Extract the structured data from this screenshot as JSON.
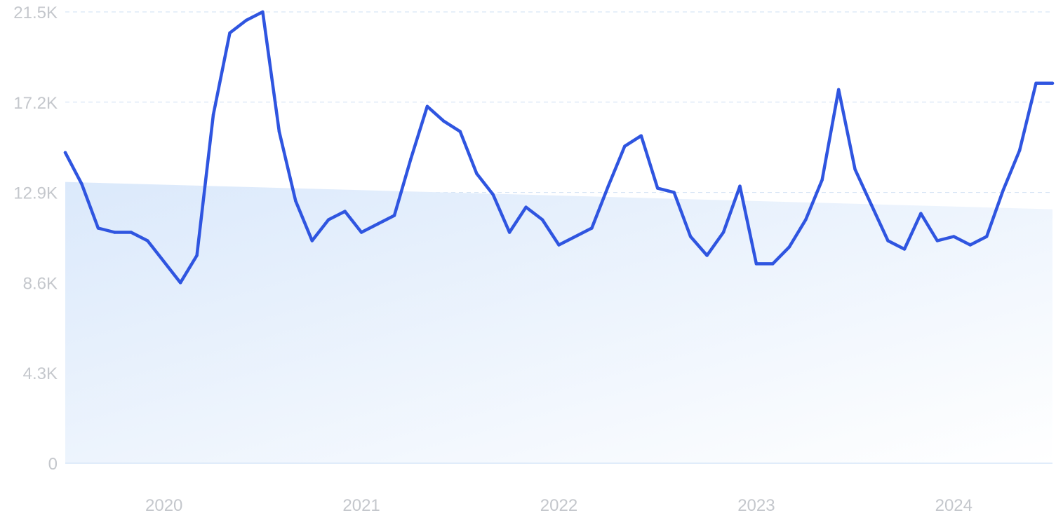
{
  "chart_data": {
    "type": "line",
    "title": "",
    "xlabel": "",
    "ylabel": "",
    "colors": {
      "line": "#2f55e0",
      "trend_fill_start": "#dbe9fb",
      "trend_fill_end": "#ffffff",
      "grid": "#cfe0f3",
      "tick_text": "#c4c7cc"
    },
    "grid": true,
    "y_ticks": [
      {
        "value": 0,
        "label": "0"
      },
      {
        "value": 4300,
        "label": "4.3K"
      },
      {
        "value": 8600,
        "label": "8.6K"
      },
      {
        "value": 12900,
        "label": "12.9K"
      },
      {
        "value": 17200,
        "label": "17.2K"
      },
      {
        "value": 21500,
        "label": "21.5K"
      }
    ],
    "ylim": [
      0,
      21500
    ],
    "xlim": [
      "2019-07",
      "2024-07"
    ],
    "x_ticks": [
      {
        "date": "2020-01",
        "label": "2020"
      },
      {
        "date": "2021-01",
        "label": "2021"
      },
      {
        "date": "2022-01",
        "label": "2022"
      },
      {
        "date": "2023-01",
        "label": "2023"
      },
      {
        "date": "2024-01",
        "label": "2024"
      }
    ],
    "trend": {
      "start_date": "2019-07",
      "start_value": 13400,
      "end_date": "2024-07",
      "end_value": 12100
    },
    "series": [
      {
        "x": [
          "2019-07",
          "2019-08",
          "2019-09",
          "2019-10",
          "2019-11",
          "2019-12",
          "2020-01",
          "2020-02",
          "2020-03",
          "2020-04",
          "2020-05",
          "2020-06",
          "2020-07",
          "2020-08",
          "2020-09",
          "2020-10",
          "2020-11",
          "2020-12",
          "2021-01",
          "2021-02",
          "2021-03",
          "2021-04",
          "2021-05",
          "2021-06",
          "2021-07",
          "2021-08",
          "2021-09",
          "2021-10",
          "2021-11",
          "2021-12",
          "2022-01",
          "2022-02",
          "2022-03",
          "2022-04",
          "2022-05",
          "2022-06",
          "2022-07",
          "2022-08",
          "2022-09",
          "2022-10",
          "2022-11",
          "2022-12",
          "2023-01",
          "2023-02",
          "2023-03",
          "2023-04",
          "2023-05",
          "2023-06",
          "2023-07",
          "2023-08",
          "2023-09",
          "2023-10",
          "2023-11",
          "2023-12",
          "2024-01",
          "2024-02",
          "2024-03",
          "2024-04",
          "2024-05",
          "2024-06",
          "2024-07"
        ],
        "y": [
          14800,
          13300,
          11200,
          11000,
          11000,
          10600,
          9600,
          8600,
          9900,
          16600,
          20500,
          21100,
          21500,
          15800,
          12500,
          10600,
          11600,
          12000,
          11000,
          11400,
          11800,
          14500,
          17000,
          16300,
          15800,
          13800,
          12800,
          11000,
          12200,
          11600,
          10400,
          10800,
          11200,
          13200,
          15100,
          15600,
          13100,
          12900,
          10800,
          9900,
          11000,
          13200,
          9500,
          9500,
          10300,
          11600,
          13500,
          17800,
          14000,
          12300,
          10600,
          10200,
          11900,
          10600,
          10800,
          10400,
          10800,
          13000,
          14900,
          18100,
          18100
        ]
      }
    ]
  }
}
